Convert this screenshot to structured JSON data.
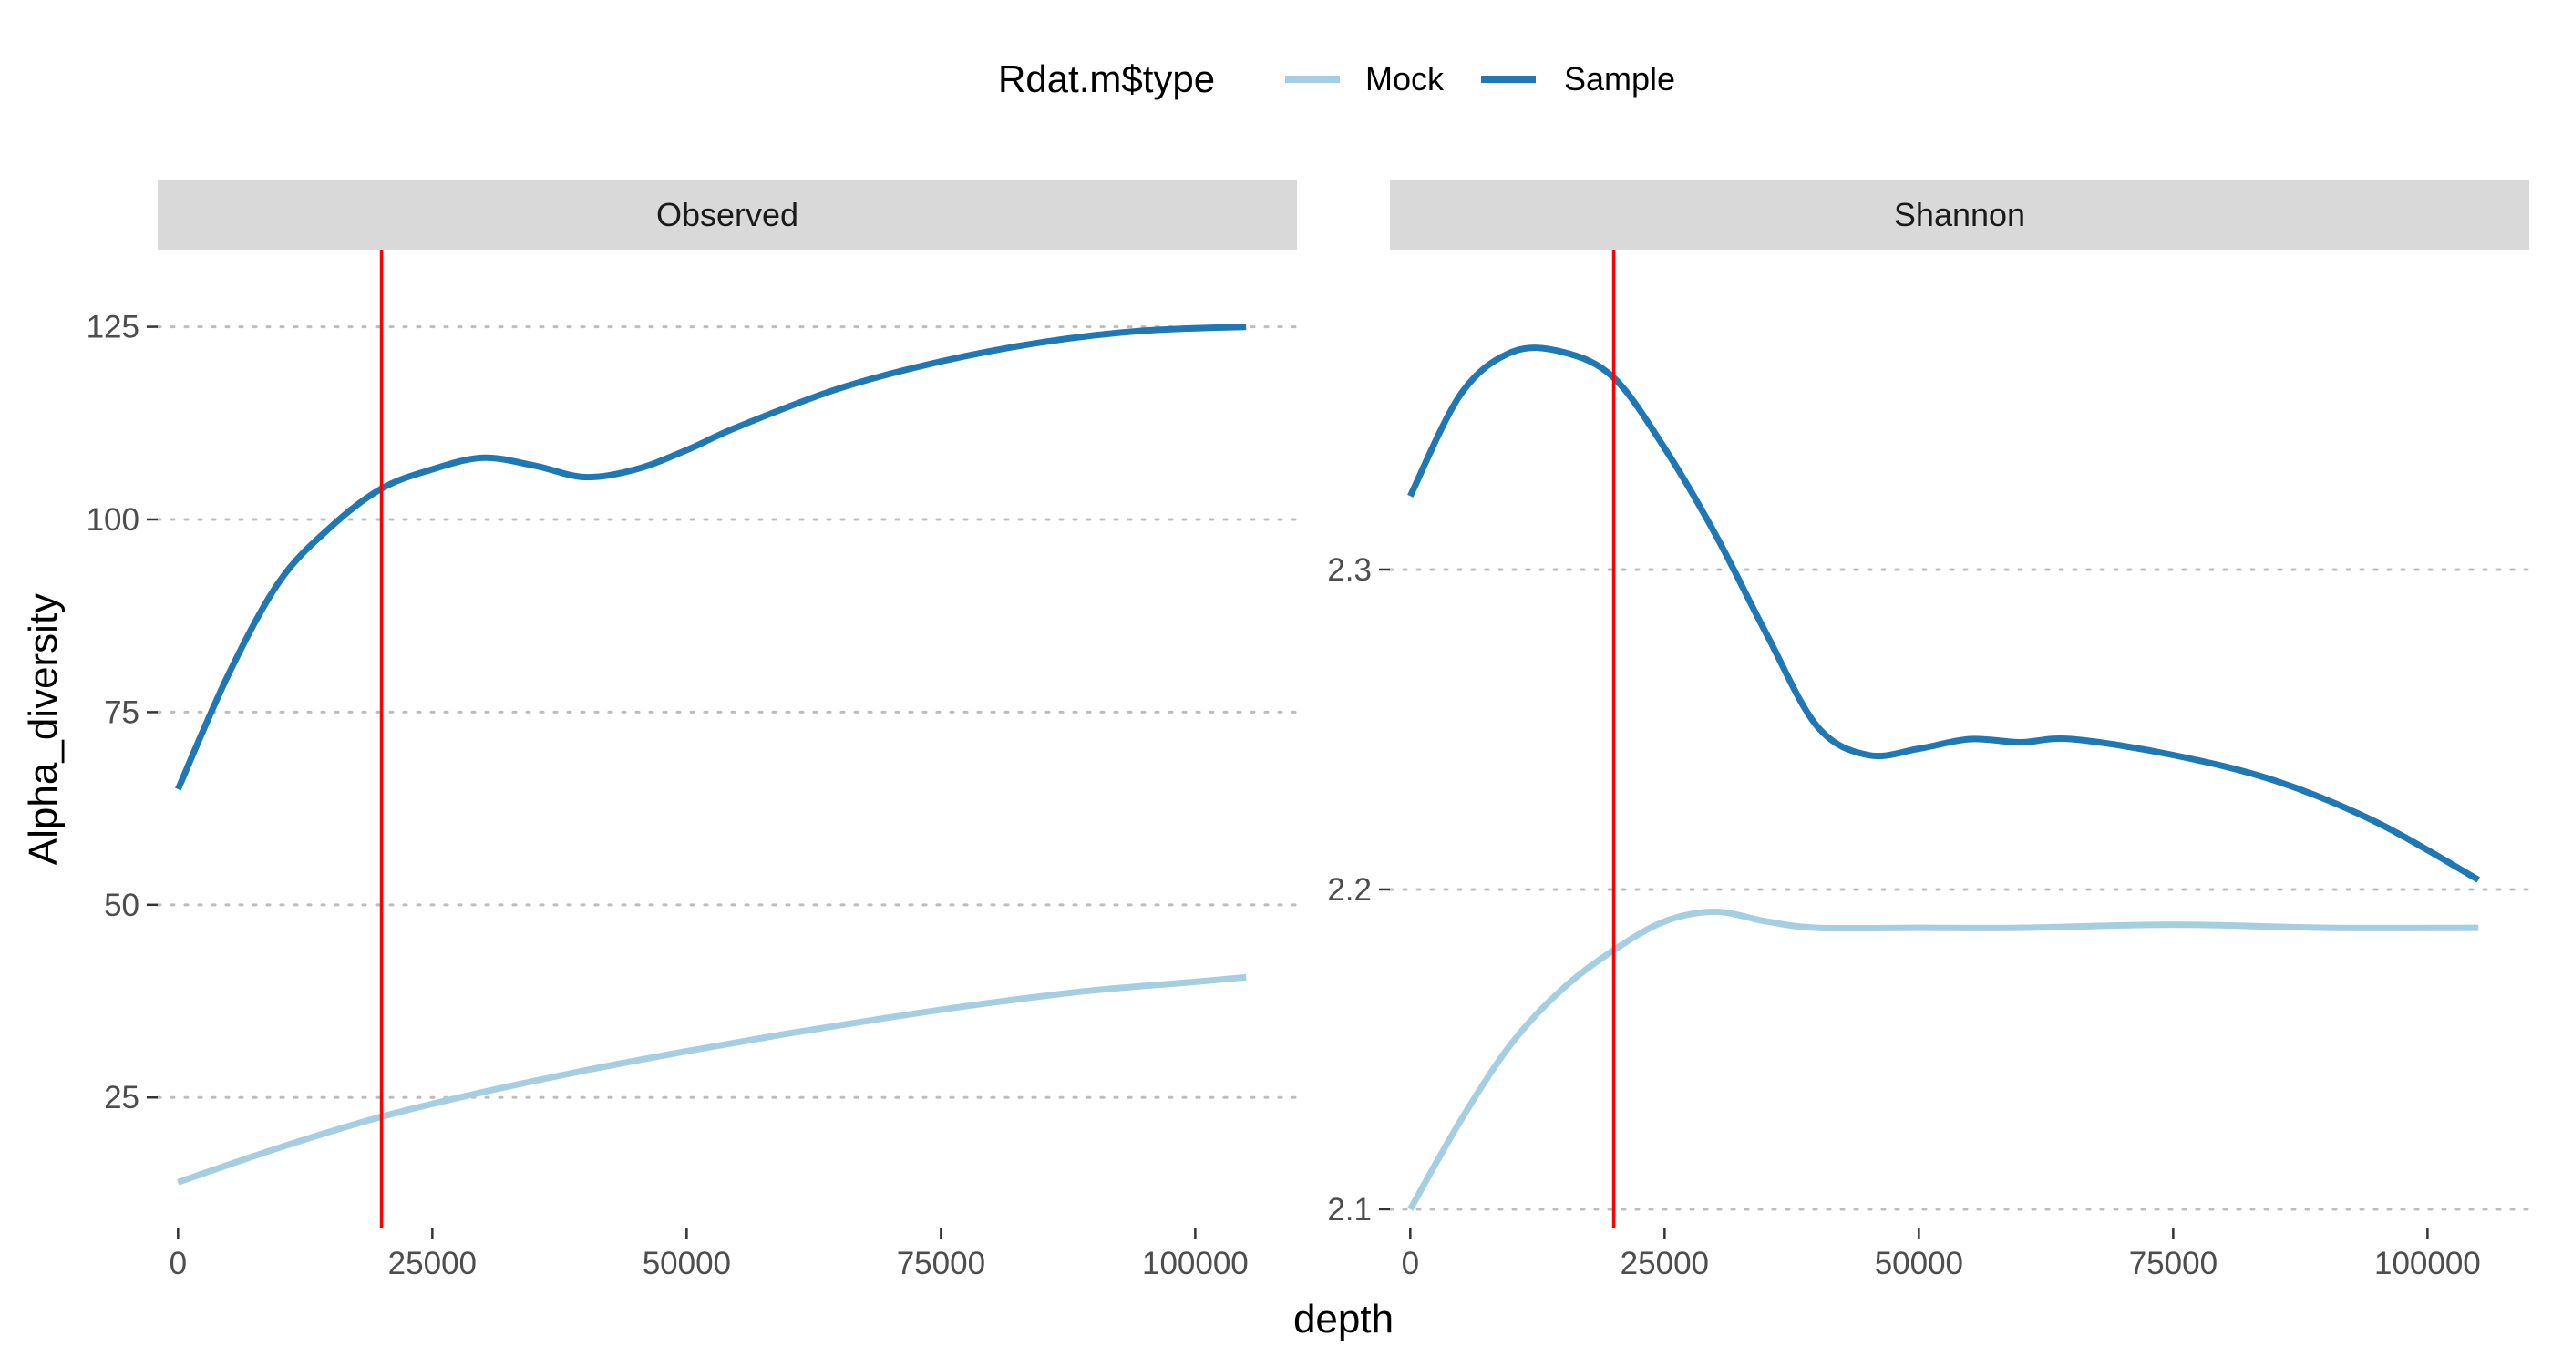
{
  "legend": {
    "title": "Rdat.m$type",
    "items": [
      {
        "label": "Mock",
        "color": "#a6cee3"
      },
      {
        "label": "Sample",
        "color": "#1f78b4"
      }
    ]
  },
  "axes": {
    "xlabel": "depth",
    "ylabel": "Alpha_diversity"
  },
  "reference_line": {
    "x": 20000,
    "color": "#ff0000"
  },
  "chart_data": [
    {
      "type": "line",
      "facet": "Observed",
      "xlim": [
        -2000,
        110000
      ],
      "ylim": [
        8,
        135
      ],
      "x_ticks": [
        0,
        25000,
        50000,
        75000,
        100000
      ],
      "x_tick_labels": [
        "0",
        "25000",
        "50000",
        "75000",
        "100000"
      ],
      "y_ticks": [
        25,
        50,
        75,
        100,
        125
      ],
      "y_tick_labels": [
        "25",
        "50",
        "75",
        "100",
        "125"
      ],
      "grid": "horizontal dotted",
      "series": [
        {
          "name": "Mock",
          "color": "#a6cee3",
          "x": [
            0,
            10000,
            20000,
            30000,
            40000,
            50000,
            60000,
            70000,
            80000,
            90000,
            100000,
            105000
          ],
          "y": [
            14,
            18.5,
            22.5,
            25.7,
            28.5,
            31,
            33.3,
            35.4,
            37.3,
            38.9,
            40,
            40.6
          ]
        },
        {
          "name": "Sample",
          "color": "#1f78b4",
          "x": [
            0,
            5000,
            10000,
            15000,
            20000,
            25000,
            30000,
            35000,
            40000,
            45000,
            50000,
            55000,
            65000,
            75000,
            85000,
            95000,
            105000
          ],
          "y": [
            65,
            80,
            92,
            99,
            104,
            106.5,
            108,
            107,
            105.5,
            106.5,
            109,
            112,
            117,
            120.5,
            123,
            124.5,
            125
          ]
        }
      ]
    },
    {
      "type": "line",
      "facet": "Shannon",
      "xlim": [
        -2000,
        110000
      ],
      "ylim": [
        2.094,
        2.4
      ],
      "x_ticks": [
        0,
        25000,
        50000,
        75000,
        100000
      ],
      "x_tick_labels": [
        "0",
        "25000",
        "50000",
        "75000",
        "100000"
      ],
      "y_ticks": [
        2.1,
        2.2,
        2.3
      ],
      "y_tick_labels": [
        "2.1",
        "2.2",
        "2.3"
      ],
      "grid": "horizontal dotted",
      "series": [
        {
          "name": "Mock",
          "color": "#a6cee3",
          "x": [
            0,
            5000,
            10000,
            15000,
            20000,
            25000,
            30000,
            35000,
            40000,
            50000,
            60000,
            75000,
            90000,
            105000
          ],
          "y": [
            2.1,
            2.128,
            2.152,
            2.169,
            2.181,
            2.19,
            2.193,
            2.19,
            2.188,
            2.188,
            2.188,
            2.189,
            2.188,
            2.188
          ]
        },
        {
          "name": "Sample",
          "color": "#1f78b4",
          "x": [
            0,
            5000,
            10000,
            15000,
            20000,
            25000,
            30000,
            35000,
            40000,
            45000,
            50000,
            55000,
            60000,
            65000,
            75000,
            85000,
            95000,
            105000
          ],
          "y": [
            2.323,
            2.355,
            2.368,
            2.368,
            2.36,
            2.338,
            2.311,
            2.28,
            2.251,
            2.242,
            2.244,
            2.247,
            2.246,
            2.247,
            2.242,
            2.234,
            2.221,
            2.203
          ]
        }
      ]
    }
  ]
}
